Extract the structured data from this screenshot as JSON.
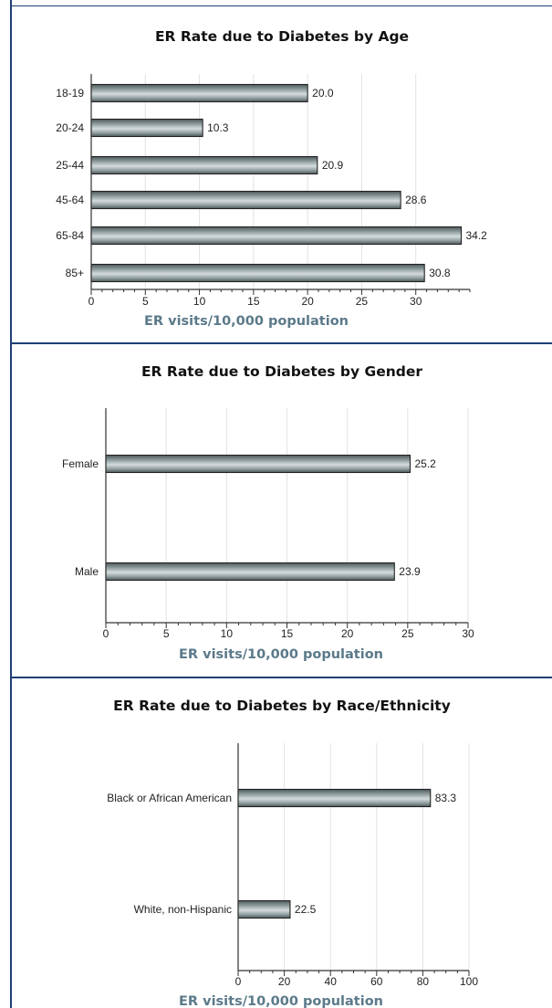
{
  "chart_data": [
    {
      "type": "bar",
      "orientation": "horizontal",
      "title": "ER Rate due to Diabetes by Age",
      "xlabel": "ER visits/10,000 population",
      "ylabel": "",
      "categories": [
        "18-19",
        "20-24",
        "25-44",
        "45-64",
        "65-84",
        "85+"
      ],
      "values": [
        20.0,
        10.3,
        20.9,
        28.6,
        34.2,
        30.8
      ],
      "value_labels": [
        "20.0",
        "10.3",
        "20.9",
        "28.6",
        "34.2",
        "30.8"
      ],
      "xlim": [
        0,
        35
      ],
      "xticks": [
        0,
        5,
        10,
        15,
        20,
        25,
        30
      ],
      "grid": "vertical",
      "legend": "none"
    },
    {
      "type": "bar",
      "orientation": "horizontal",
      "title": "ER Rate due to Diabetes by Gender",
      "xlabel": "ER visits/10,000 population",
      "ylabel": "",
      "categories": [
        "Female",
        "Male"
      ],
      "values": [
        25.2,
        23.9
      ],
      "value_labels": [
        "25.2",
        "23.9"
      ],
      "xlim": [
        0,
        30
      ],
      "xticks": [
        0,
        5,
        10,
        15,
        20,
        25,
        30
      ],
      "grid": "vertical",
      "legend": "none"
    },
    {
      "type": "bar",
      "orientation": "horizontal",
      "title": "ER Rate due to Diabetes by Race/Ethnicity",
      "xlabel": "ER visits/10,000 population",
      "ylabel": "",
      "categories": [
        "Black or African American",
        "White, non-Hispanic"
      ],
      "values": [
        83.3,
        22.5
      ],
      "value_labels": [
        "83.3",
        "22.5"
      ],
      "xlim": [
        0,
        100
      ],
      "xticks": [
        0,
        20,
        40,
        60,
        80,
        100
      ],
      "grid": "vertical",
      "legend": "none"
    }
  ],
  "colors": {
    "frame": "#1f3f73",
    "bar_dark": "#4e5a5c",
    "bar_mid": "#8f9c9e",
    "bar_light": "#d4dcdd",
    "bar_outline": "#222222",
    "xlabel": "#5b7a8a",
    "grid": "#e2e2e2"
  }
}
